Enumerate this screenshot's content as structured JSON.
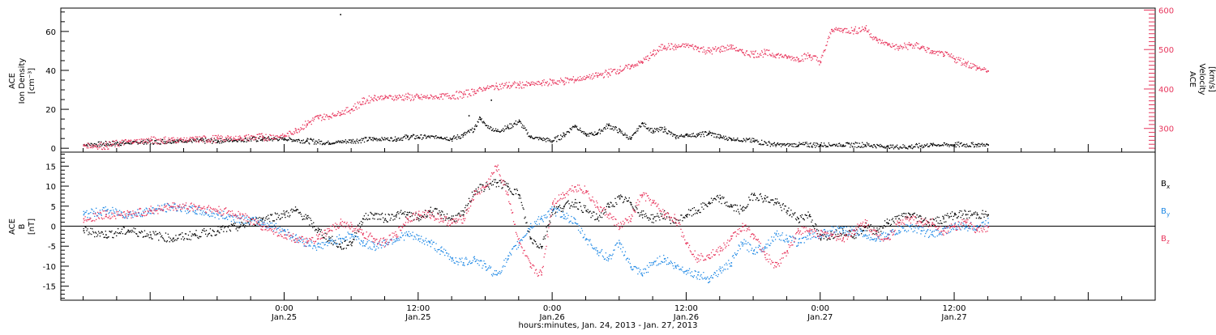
{
  "colors": {
    "ink": "#000000",
    "red": "#e8365d",
    "blue": "#1e88e5"
  },
  "chart_data": [
    {
      "type": "scatter",
      "panel": "top",
      "ylabel": [
        "ACE",
        "Ion Density",
        "[cm⁻³]"
      ],
      "y2label": [
        "ACE",
        "Velocity",
        "[km/s]"
      ],
      "ylim": [
        -2,
        72
      ],
      "y2lim": [
        240,
        605
      ],
      "yticks": [
        0,
        20,
        40,
        60
      ],
      "y2ticks": [
        300,
        400,
        500,
        600
      ],
      "series": [
        {
          "key": "density",
          "axis": "left",
          "color": "#000000",
          "x": [
            -18,
            -14,
            -10,
            -6,
            -2,
            0,
            2,
            4,
            6,
            8,
            10,
            11,
            12,
            14,
            15,
            16,
            17,
            17.5,
            18,
            19,
            20,
            21,
            22,
            23,
            24,
            25,
            26,
            27,
            28,
            29,
            30,
            31,
            32,
            33,
            34,
            35,
            36,
            37,
            38,
            39,
            40,
            42,
            44,
            46,
            48,
            50,
            52,
            54,
            56,
            58,
            60,
            62,
            63
          ],
          "values": [
            2,
            3,
            4,
            4,
            5,
            5,
            4,
            3,
            4,
            5,
            5,
            6,
            6,
            6,
            5,
            7,
            10,
            16,
            12,
            9,
            11,
            14,
            6,
            5,
            4,
            7,
            12,
            7,
            8,
            12,
            9,
            5,
            13,
            9,
            10,
            6,
            7,
            7,
            8,
            6,
            5,
            4,
            2,
            2,
            2,
            2,
            2,
            1,
            1,
            2,
            2,
            2,
            2
          ]
        },
        {
          "key": "velocity",
          "axis": "right",
          "color": "#e8365d",
          "x": [
            -18,
            -16,
            -14,
            -12,
            -10,
            -8,
            -6,
            -4,
            -2,
            0,
            1,
            2,
            3,
            4,
            5,
            6,
            7,
            8,
            9,
            10,
            11,
            12,
            14,
            16,
            17,
            18,
            19,
            20,
            21,
            22,
            23,
            24,
            25,
            26,
            27,
            28,
            29,
            30,
            31,
            32,
            33,
            34,
            35,
            36,
            37,
            38,
            39,
            40,
            41,
            42,
            43,
            44,
            45,
            46,
            47,
            48,
            49,
            50,
            51,
            52,
            53,
            54,
            55,
            56,
            57,
            58,
            59,
            60,
            61,
            62,
            63
          ],
          "values": [
            258,
            257,
            268,
            271,
            272,
            273,
            275,
            277,
            279,
            282,
            296,
            313,
            329,
            332,
            341,
            350,
            369,
            379,
            380,
            380,
            381,
            379,
            382,
            387,
            395,
            403,
            408,
            410,
            411,
            413,
            416,
            419,
            421,
            425,
            430,
            435,
            442,
            450,
            458,
            470,
            490,
            510,
            507,
            512,
            505,
            497,
            502,
            508,
            494,
            490,
            492,
            488,
            482,
            478,
            486,
            470,
            552,
            551,
            549,
            555,
            525,
            515,
            505,
            512,
            508,
            494,
            490,
            478,
            467,
            455,
            447
          ]
        }
      ],
      "points": [
        {
          "x": 5,
          "y": 69,
          "series": "density"
        },
        {
          "x": 18.5,
          "y": 25,
          "series": "density"
        },
        {
          "x": 16.5,
          "y": 17,
          "series": "density"
        }
      ]
    },
    {
      "type": "scatter",
      "panel": "bottom",
      "ylabel": [
        "ACE",
        "B",
        "[nT]"
      ],
      "ylim": [
        -18.5,
        18.5
      ],
      "yticks": [
        15,
        10,
        5,
        0,
        -5,
        -10,
        -15
      ],
      "series": [
        {
          "key": "Bx",
          "name": "Bx",
          "color": "#000000",
          "x": [
            -18,
            -16,
            -14,
            -12,
            -10,
            -8,
            -6,
            -4,
            -2,
            0,
            1,
            2,
            3,
            4,
            5,
            6,
            7,
            8,
            9,
            10,
            11,
            12,
            13,
            14,
            15,
            16,
            17,
            18,
            19,
            20,
            21,
            22,
            23,
            24,
            25,
            26,
            27,
            28,
            29,
            30,
            31,
            32,
            33,
            34,
            35,
            36,
            37,
            38,
            39,
            40,
            41,
            42,
            43,
            44,
            45,
            46,
            47,
            48,
            49,
            50,
            51,
            52,
            53,
            54,
            55,
            56,
            57,
            58,
            59,
            60,
            61,
            62,
            63
          ],
          "values": [
            -1,
            -2,
            -1,
            -2,
            -3,
            -2,
            -1,
            0,
            2,
            3,
            4,
            2,
            -1,
            -3,
            -5,
            -4,
            2,
            3,
            2,
            3,
            3,
            2,
            4,
            3,
            2,
            3,
            9,
            10,
            11,
            10,
            8,
            -3,
            -5,
            4,
            5,
            6,
            4,
            2,
            5,
            7,
            6,
            3,
            2,
            3,
            1,
            3,
            4,
            6,
            7,
            5,
            4,
            8,
            7,
            6,
            4,
            2,
            3,
            -3,
            -2,
            -1,
            -2,
            0,
            -1,
            1,
            2,
            3,
            2,
            1,
            2,
            3,
            3,
            3,
            3
          ]
        },
        {
          "key": "By",
          "name": "By",
          "color": "#1e88e5",
          "x": [
            -18,
            -16,
            -14,
            -12,
            -10,
            -8,
            -6,
            -4,
            -2,
            0,
            1,
            2,
            3,
            4,
            5,
            6,
            7,
            8,
            9,
            10,
            11,
            12,
            13,
            14,
            15,
            16,
            17,
            18,
            19,
            20,
            21,
            22,
            23,
            24,
            25,
            26,
            27,
            28,
            29,
            30,
            31,
            32,
            33,
            34,
            35,
            36,
            37,
            38,
            39,
            40,
            41,
            42,
            43,
            44,
            45,
            46,
            47,
            48,
            49,
            50,
            51,
            52,
            53,
            54,
            55,
            56,
            57,
            58,
            59,
            60,
            61,
            62,
            63
          ],
          "values": [
            3,
            4,
            3,
            4,
            5,
            4,
            3,
            2,
            1,
            -1,
            -3,
            -4,
            -5,
            -4,
            -3,
            -2,
            -4,
            -5,
            -4,
            -3,
            -2,
            -3,
            -4,
            -6,
            -8,
            -9,
            -8,
            -10,
            -12,
            -8,
            -4,
            0,
            2,
            4,
            3,
            1,
            -3,
            -6,
            -8,
            -4,
            -10,
            -12,
            -9,
            -8,
            -10,
            -11,
            -12,
            -13,
            -11,
            -9,
            -4,
            -6,
            -5,
            -2,
            -3,
            -4,
            -2,
            -2,
            -1,
            -1,
            -1,
            -2,
            -3,
            -2,
            -1,
            0,
            -1,
            -2,
            -1,
            0,
            0,
            0,
            1
          ]
        },
        {
          "key": "Bz",
          "name": "Bz",
          "color": "#e8365d",
          "x": [
            -18,
            -16,
            -14,
            -12,
            -10,
            -8,
            -6,
            -4,
            -2,
            0,
            1,
            2,
            3,
            4,
            5,
            6,
            7,
            8,
            9,
            10,
            11,
            12,
            13,
            14,
            15,
            16,
            17,
            18,
            19,
            20,
            21,
            22,
            23,
            24,
            25,
            26,
            27,
            28,
            29,
            30,
            31,
            32,
            33,
            34,
            35,
            36,
            37,
            38,
            39,
            40,
            41,
            42,
            43,
            44,
            45,
            46,
            47,
            48,
            49,
            50,
            51,
            52,
            53,
            54,
            55,
            56,
            57,
            58,
            59,
            60,
            61,
            62,
            63
          ],
          "values": [
            2,
            3,
            3,
            4,
            5,
            5,
            4,
            3,
            0,
            -2,
            -3,
            -4,
            -3,
            -1,
            1,
            0,
            -2,
            -3,
            -4,
            -2,
            2,
            3,
            3,
            2,
            1,
            2,
            8,
            10,
            15,
            8,
            -4,
            -10,
            -12,
            6,
            8,
            10,
            9,
            5,
            3,
            0,
            2,
            8,
            6,
            3,
            2,
            -4,
            -8,
            -7,
            -6,
            -3,
            0,
            -2,
            -7,
            -10,
            -6,
            -1,
            -1,
            -2,
            -2,
            -3,
            -1,
            1,
            -2,
            -3,
            1,
            2,
            1,
            1,
            -1,
            0,
            1,
            -1,
            0
          ]
        }
      ],
      "legend": [
        {
          "name": "B",
          "sub": "x",
          "color": "#000000"
        },
        {
          "name": "B",
          "sub": "y",
          "color": "#1e88e5"
        },
        {
          "name": "B",
          "sub": "z",
          "color": "#e8365d"
        }
      ]
    }
  ],
  "x_axis": {
    "xlim": [
      -20,
      78
    ],
    "ticks": [
      {
        "x": 0,
        "line1": "0:00",
        "line2": "Jan.25"
      },
      {
        "x": 12,
        "line1": "12:00",
        "line2": "Jan.25"
      },
      {
        "x": 24,
        "line1": "0:00",
        "line2": "Jan.26"
      },
      {
        "x": 36,
        "line1": "12:00",
        "line2": "Jan.26"
      },
      {
        "x": 48,
        "line1": "0:00",
        "line2": "Jan.27"
      },
      {
        "x": 60,
        "line1": "12:00",
        "line2": "Jan.27"
      }
    ],
    "xlabel": "hours:minutes, Jan. 24, 2013 - Jan. 27, 2013"
  }
}
